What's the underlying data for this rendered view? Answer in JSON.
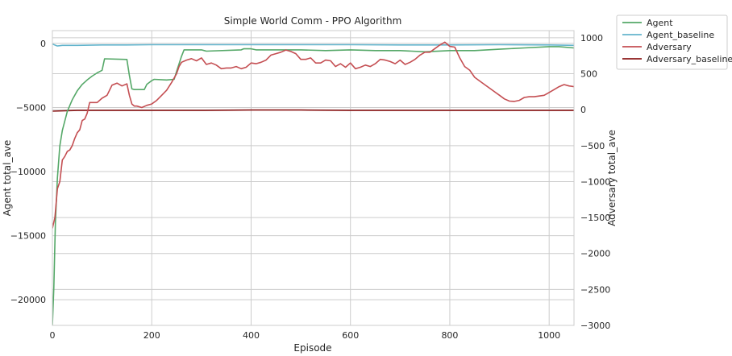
{
  "chart_data": {
    "type": "line",
    "title": "Simple World Comm - PPO Algorithm",
    "xlabel": "Episode",
    "ylabel_left": "Agent total_ave",
    "ylabel_right": "Adversary total_ave",
    "xlim": [
      0,
      1050
    ],
    "ylim_left": [
      -22000,
      1000
    ],
    "ylim_right": [
      -3000,
      1100
    ],
    "x_ticks": [
      0,
      200,
      400,
      600,
      800,
      1000
    ],
    "y_ticks_left": [
      0,
      -5000,
      -10000,
      -15000,
      -20000
    ],
    "y_ticks_right": [
      1000,
      500,
      0,
      -500,
      -1000,
      -1500,
      -2000,
      -2500,
      -3000
    ],
    "y_tick_labels_left": [
      "0",
      "−5000",
      "−10000",
      "−15000",
      "−20000"
    ],
    "y_tick_labels_right": [
      "1000",
      "500",
      "0",
      "−500",
      "−1000",
      "−1500",
      "−2000",
      "−2500",
      "−3000"
    ],
    "x_tick_labels": [
      "0",
      "200",
      "400",
      "600",
      "800",
      "1000"
    ],
    "grid": true,
    "legend_placement": "outside-top-right",
    "series": [
      {
        "name": "Agent",
        "axis": "left",
        "color": "#55a868",
        "x": [
          0,
          3,
          6,
          10,
          15,
          20,
          30,
          40,
          50,
          60,
          70,
          80,
          90,
          95,
          100,
          105,
          150,
          155,
          160,
          165,
          185,
          190,
          200,
          205,
          230,
          245,
          250,
          260,
          265,
          300,
          310,
          380,
          385,
          400,
          410,
          500,
          550,
          600,
          650,
          700,
          750,
          800,
          850,
          900,
          950,
          1000,
          1020,
          1050
        ],
        "y": [
          -22000,
          -19000,
          -14000,
          -10500,
          -8000,
          -6800,
          -5300,
          -4400,
          -3700,
          -3200,
          -2850,
          -2550,
          -2300,
          -2200,
          -2100,
          -1200,
          -1250,
          -2500,
          -3550,
          -3600,
          -3600,
          -3200,
          -2900,
          -2800,
          -2850,
          -2800,
          -2200,
          -1000,
          -500,
          -500,
          -600,
          -500,
          -420,
          -420,
          -500,
          -500,
          -560,
          -500,
          -560,
          -560,
          -650,
          -560,
          -560,
          -450,
          -350,
          -250,
          -250,
          -350
        ]
      },
      {
        "name": "Agent_baseline",
        "axis": "left",
        "color": "#64b5cd",
        "x": [
          0,
          10,
          20,
          50,
          100,
          150,
          200,
          300,
          400,
          500,
          600,
          700,
          800,
          900,
          1000,
          1050
        ],
        "y": [
          -50,
          -200,
          -150,
          -150,
          -120,
          -120,
          -100,
          -100,
          -100,
          -100,
          -100,
          -120,
          -120,
          -100,
          -120,
          -150
        ]
      },
      {
        "name": "Adversary",
        "axis": "right",
        "color": "#c44e52",
        "x": [
          0,
          5,
          10,
          15,
          20,
          25,
          30,
          35,
          40,
          45,
          50,
          55,
          60,
          65,
          70,
          75,
          80,
          90,
          100,
          110,
          120,
          130,
          140,
          150,
          155,
          160,
          165,
          170,
          180,
          190,
          200,
          210,
          220,
          230,
          240,
          250,
          255,
          260,
          270,
          280,
          290,
          300,
          310,
          320,
          330,
          340,
          350,
          360,
          370,
          380,
          390,
          400,
          410,
          420,
          430,
          440,
          450,
          460,
          470,
          480,
          490,
          500,
          510,
          520,
          530,
          540,
          550,
          560,
          570,
          580,
          590,
          600,
          610,
          620,
          630,
          640,
          650,
          660,
          670,
          680,
          690,
          700,
          710,
          720,
          730,
          740,
          750,
          760,
          770,
          780,
          790,
          795,
          800,
          810,
          820,
          830,
          840,
          850,
          860,
          870,
          880,
          890,
          900,
          910,
          920,
          930,
          940,
          950,
          960,
          970,
          980,
          990,
          1000,
          1010,
          1020,
          1030,
          1040,
          1050
        ],
        "y": [
          -1650,
          -1500,
          -1100,
          -1000,
          -700,
          -650,
          -580,
          -560,
          -500,
          -400,
          -320,
          -280,
          -150,
          -130,
          -50,
          100,
          100,
          100,
          160,
          200,
          340,
          370,
          330,
          360,
          200,
          80,
          50,
          50,
          30,
          60,
          80,
          130,
          200,
          270,
          380,
          500,
          600,
          660,
          690,
          710,
          680,
          720,
          630,
          650,
          620,
          570,
          580,
          580,
          600,
          570,
          590,
          650,
          640,
          660,
          690,
          760,
          780,
          800,
          830,
          810,
          780,
          700,
          700,
          720,
          650,
          650,
          690,
          680,
          600,
          640,
          590,
          650,
          570,
          590,
          620,
          600,
          640,
          700,
          690,
          670,
          640,
          690,
          630,
          660,
          700,
          760,
          800,
          800,
          850,
          900,
          940,
          910,
          880,
          870,
          720,
          600,
          550,
          450,
          400,
          350,
          300,
          250,
          200,
          150,
          120,
          115,
          130,
          170,
          180,
          180,
          190,
          200,
          240,
          280,
          320,
          350,
          330,
          320
        ]
      },
      {
        "name": "Adversary_baseline",
        "axis": "right",
        "color": "#8c1a1a",
        "x": [
          0,
          50,
          100,
          200,
          300,
          400,
          500,
          600,
          700,
          800,
          900,
          1000,
          1050
        ],
        "y": [
          -20,
          -10,
          -10,
          -10,
          -10,
          -5,
          -5,
          -10,
          -10,
          -10,
          -10,
          -10,
          -10
        ]
      }
    ]
  }
}
